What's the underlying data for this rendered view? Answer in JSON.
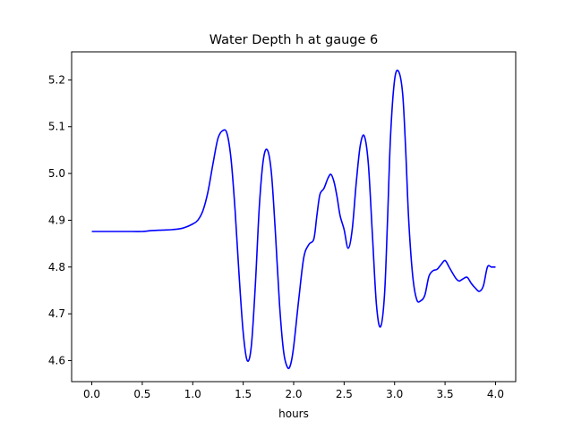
{
  "chart_data": {
    "type": "line",
    "title": "Water Depth h at gauge 6",
    "xlabel": "hours",
    "ylabel": "",
    "xlim": [
      -0.2,
      4.2
    ],
    "ylim": [
      4.555,
      5.26
    ],
    "grid": false,
    "legend": "none",
    "x_ticks": [
      0.0,
      0.5,
      1.0,
      1.5,
      2.0,
      2.5,
      3.0,
      3.5,
      4.0
    ],
    "x_tick_labels": [
      "0.0",
      "0.5",
      "1.0",
      "1.5",
      "2.0",
      "2.5",
      "3.0",
      "3.5",
      "4.0"
    ],
    "y_ticks": [
      4.6,
      4.7,
      4.8,
      4.9,
      5.0,
      5.1,
      5.2
    ],
    "y_tick_labels": [
      "4.6",
      "4.7",
      "4.8",
      "4.9",
      "5.0",
      "5.1",
      "5.2"
    ],
    "series": [
      {
        "color": "#0000ff",
        "x": [
          0.0,
          0.2,
          0.4,
          0.5,
          0.6,
          0.7,
          0.8,
          0.9,
          1.0,
          1.05,
          1.1,
          1.15,
          1.2,
          1.25,
          1.3,
          1.34,
          1.38,
          1.42,
          1.46,
          1.5,
          1.54,
          1.58,
          1.62,
          1.66,
          1.7,
          1.74,
          1.78,
          1.82,
          1.86,
          1.9,
          1.94,
          1.97,
          2.0,
          2.05,
          2.1,
          2.15,
          2.2,
          2.23,
          2.26,
          2.3,
          2.34,
          2.37,
          2.4,
          2.43,
          2.46,
          2.5,
          2.54,
          2.58,
          2.62,
          2.66,
          2.7,
          2.74,
          2.78,
          2.82,
          2.86,
          2.9,
          2.93,
          2.96,
          3.0,
          3.04,
          3.08,
          3.11,
          3.14,
          3.18,
          3.22,
          3.26,
          3.3,
          3.34,
          3.38,
          3.42,
          3.46,
          3.5,
          3.54,
          3.58,
          3.61,
          3.64,
          3.68,
          3.72,
          3.76,
          3.8,
          3.84,
          3.88,
          3.92,
          3.96,
          4.0
        ],
        "y": [
          4.876,
          4.876,
          4.876,
          4.876,
          4.878,
          4.879,
          4.88,
          4.883,
          4.892,
          4.9,
          4.92,
          4.96,
          5.02,
          5.075,
          5.092,
          5.085,
          5.03,
          4.92,
          4.78,
          4.66,
          4.6,
          4.63,
          4.76,
          4.93,
          5.03,
          5.05,
          5.0,
          4.87,
          4.72,
          4.62,
          4.585,
          4.592,
          4.63,
          4.73,
          4.82,
          4.848,
          4.86,
          4.91,
          4.955,
          4.968,
          4.99,
          4.998,
          4.982,
          4.95,
          4.91,
          4.88,
          4.84,
          4.88,
          4.98,
          5.06,
          5.08,
          5.02,
          4.87,
          4.72,
          4.672,
          4.74,
          4.9,
          5.08,
          5.2,
          5.218,
          5.17,
          5.05,
          4.9,
          4.78,
          4.73,
          4.728,
          4.74,
          4.78,
          4.792,
          4.795,
          4.805,
          4.814,
          4.8,
          4.785,
          4.775,
          4.77,
          4.775,
          4.778,
          4.765,
          4.755,
          4.748,
          4.76,
          4.8,
          4.8,
          4.8
        ]
      }
    ]
  }
}
